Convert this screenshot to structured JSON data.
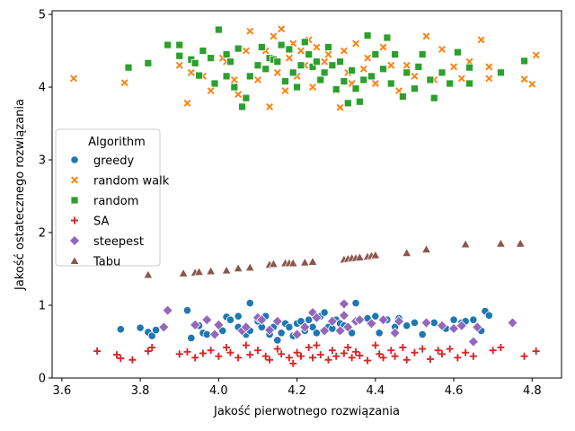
{
  "chart_data": {
    "type": "scatter",
    "title": "",
    "xlabel": "Jakość pierwotnego rozwiązania",
    "ylabel": "Jakość ostatecznego rozwiązania",
    "xlim": [
      3.575,
      4.875
    ],
    "ylim": [
      0,
      5.05
    ],
    "xticks": [
      3.6,
      3.8,
      4.0,
      4.2,
      4.4,
      4.6,
      4.8
    ],
    "yticks": [
      0,
      1,
      2,
      3,
      4,
      5
    ],
    "grid": false,
    "legend": {
      "title": "Algorithm",
      "placement": "center-left"
    },
    "series": [
      {
        "name": "greedy",
        "marker": "circle",
        "color": "#1f77b4",
        "points": [
          [
            3.75,
            0.67
          ],
          [
            3.8,
            0.69
          ],
          [
            3.82,
            0.63
          ],
          [
            3.83,
            0.58
          ],
          [
            3.84,
            0.66
          ],
          [
            3.92,
            0.93
          ],
          [
            3.93,
            0.55
          ],
          [
            3.95,
            0.72
          ],
          [
            3.96,
            0.62
          ],
          [
            3.97,
            0.6
          ],
          [
            4.0,
            0.72
          ],
          [
            4.01,
            0.65
          ],
          [
            4.02,
            0.84
          ],
          [
            4.03,
            0.8
          ],
          [
            4.05,
            0.85
          ],
          [
            4.05,
            0.7
          ],
          [
            4.07,
            0.6
          ],
          [
            4.08,
            0.65
          ],
          [
            4.08,
            1.03
          ],
          [
            4.1,
            0.78
          ],
          [
            4.11,
            0.7
          ],
          [
            4.12,
            0.85
          ],
          [
            4.13,
            0.6
          ],
          [
            4.14,
            0.7
          ],
          [
            4.15,
            0.52
          ],
          [
            4.16,
            0.62
          ],
          [
            4.17,
            0.75
          ],
          [
            4.18,
            0.7
          ],
          [
            4.19,
            0.58
          ],
          [
            4.2,
            0.75
          ],
          [
            4.21,
            0.78
          ],
          [
            4.22,
            0.65
          ],
          [
            4.23,
            0.8
          ],
          [
            4.24,
            0.7
          ],
          [
            4.25,
            0.62
          ],
          [
            4.26,
            0.85
          ],
          [
            4.27,
            0.9
          ],
          [
            4.28,
            0.7
          ],
          [
            4.29,
            0.68
          ],
          [
            4.3,
            0.8
          ],
          [
            4.31,
            0.75
          ],
          [
            4.32,
            0.72
          ],
          [
            4.33,
            0.7
          ],
          [
            4.34,
            0.62
          ],
          [
            4.35,
            1.03
          ],
          [
            4.36,
            0.8
          ],
          [
            4.38,
            0.82
          ],
          [
            4.4,
            0.85
          ],
          [
            4.41,
            0.62
          ],
          [
            4.43,
            0.8
          ],
          [
            4.45,
            0.7
          ],
          [
            4.46,
            0.82
          ],
          [
            4.48,
            0.72
          ],
          [
            4.5,
            0.76
          ],
          [
            4.52,
            0.6
          ],
          [
            4.55,
            0.76
          ],
          [
            4.58,
            0.68
          ],
          [
            4.6,
            0.8
          ],
          [
            4.62,
            0.76
          ],
          [
            4.63,
            0.78
          ],
          [
            4.65,
            0.8
          ],
          [
            4.67,
            0.65
          ],
          [
            4.68,
            0.92
          ],
          [
            4.69,
            0.86
          ]
        ]
      },
      {
        "name": "random walk",
        "marker": "x",
        "color": "#ff7f0e",
        "points": [
          [
            3.63,
            4.12
          ],
          [
            3.76,
            4.06
          ],
          [
            3.9,
            4.3
          ],
          [
            3.92,
            3.78
          ],
          [
            3.93,
            4.2
          ],
          [
            3.96,
            4.15
          ],
          [
            3.98,
            3.95
          ],
          [
            4.01,
            4.4
          ],
          [
            4.02,
            4.35
          ],
          [
            4.04,
            4.1
          ],
          [
            4.05,
            3.9
          ],
          [
            4.07,
            4.5
          ],
          [
            4.08,
            4.77
          ],
          [
            4.1,
            4.1
          ],
          [
            4.12,
            4.5
          ],
          [
            4.13,
            3.73
          ],
          [
            4.14,
            4.7
          ],
          [
            4.15,
            4.2
          ],
          [
            4.16,
            4.8
          ],
          [
            4.17,
            3.95
          ],
          [
            4.18,
            4.4
          ],
          [
            4.19,
            4.6
          ],
          [
            4.2,
            4.15
          ],
          [
            4.21,
            4.5
          ],
          [
            4.22,
            4.3
          ],
          [
            4.23,
            4.65
          ],
          [
            4.24,
            4.0
          ],
          [
            4.25,
            4.55
          ],
          [
            4.26,
            4.1
          ],
          [
            4.27,
            4.35
          ],
          [
            4.28,
            4.45
          ],
          [
            4.3,
            3.95
          ],
          [
            4.31,
            3.72
          ],
          [
            4.32,
            4.5
          ],
          [
            4.33,
            4.2
          ],
          [
            4.34,
            4.05
          ],
          [
            4.35,
            4.6
          ],
          [
            4.37,
            4.25
          ],
          [
            4.38,
            4.4
          ],
          [
            4.4,
            4.05
          ],
          [
            4.42,
            4.55
          ],
          [
            4.44,
            4.3
          ],
          [
            4.46,
            3.95
          ],
          [
            4.48,
            4.3
          ],
          [
            4.5,
            4.15
          ],
          [
            4.53,
            4.7
          ],
          [
            4.55,
            4.1
          ],
          [
            4.57,
            4.52
          ],
          [
            4.6,
            4.28
          ],
          [
            4.62,
            4.12
          ],
          [
            4.64,
            4.35
          ],
          [
            4.67,
            4.65
          ],
          [
            4.69,
            4.28
          ],
          [
            4.69,
            4.12
          ],
          [
            4.78,
            4.11
          ],
          [
            4.81,
            4.44
          ],
          [
            4.8,
            4.04
          ]
        ]
      },
      {
        "name": "random",
        "marker": "square",
        "color": "#2ca02c",
        "points": [
          [
            3.77,
            4.27
          ],
          [
            3.82,
            4.33
          ],
          [
            3.87,
            4.58
          ],
          [
            3.9,
            4.58
          ],
          [
            3.9,
            4.43
          ],
          [
            3.93,
            4.38
          ],
          [
            3.94,
            4.33
          ],
          [
            3.95,
            4.16
          ],
          [
            3.96,
            4.5
          ],
          [
            3.98,
            4.4
          ],
          [
            3.99,
            4.05
          ],
          [
            4.0,
            4.79
          ],
          [
            4.02,
            4.15
          ],
          [
            4.02,
            4.45
          ],
          [
            4.03,
            4.35
          ],
          [
            4.04,
            4.0
          ],
          [
            4.05,
            4.53
          ],
          [
            4.06,
            3.73
          ],
          [
            4.07,
            3.85
          ],
          [
            4.08,
            4.15
          ],
          [
            4.1,
            4.3
          ],
          [
            4.11,
            4.55
          ],
          [
            4.12,
            4.25
          ],
          [
            4.13,
            4.4
          ],
          [
            4.14,
            4.38
          ],
          [
            4.15,
            4.35
          ],
          [
            4.16,
            4.58
          ],
          [
            4.17,
            4.08
          ],
          [
            4.18,
            4.52
          ],
          [
            4.19,
            4.2
          ],
          [
            4.2,
            4.0
          ],
          [
            4.21,
            4.3
          ],
          [
            4.22,
            4.62
          ],
          [
            4.23,
            4.45
          ],
          [
            4.24,
            4.28
          ],
          [
            4.25,
            4.35
          ],
          [
            4.26,
            4.1
          ],
          [
            4.27,
            4.2
          ],
          [
            4.28,
            4.55
          ],
          [
            4.29,
            4.3
          ],
          [
            4.3,
            3.97
          ],
          [
            4.31,
            4.35
          ],
          [
            4.32,
            4.08
          ],
          [
            4.33,
            3.78
          ],
          [
            4.34,
            4.23
          ],
          [
            4.35,
            3.98
          ],
          [
            4.36,
            3.8
          ],
          [
            4.37,
            4.1
          ],
          [
            4.38,
            4.71
          ],
          [
            4.39,
            4.15
          ],
          [
            4.4,
            4.45
          ],
          [
            4.42,
            4.25
          ],
          [
            4.43,
            4.68
          ],
          [
            4.44,
            4.05
          ],
          [
            4.45,
            4.45
          ],
          [
            4.47,
            3.87
          ],
          [
            4.48,
            4.2
          ],
          [
            4.5,
            3.98
          ],
          [
            4.51,
            4.28
          ],
          [
            4.52,
            4.45
          ],
          [
            4.54,
            4.1
          ],
          [
            4.55,
            3.85
          ],
          [
            4.57,
            4.2
          ],
          [
            4.59,
            4.05
          ],
          [
            4.61,
            4.48
          ],
          [
            4.64,
            4.27
          ],
          [
            4.64,
            4.05
          ],
          [
            4.72,
            4.2
          ],
          [
            4.78,
            4.36
          ]
        ]
      },
      {
        "name": "SA",
        "marker": "plus",
        "color": "#d62728",
        "points": [
          [
            3.69,
            0.37
          ],
          [
            3.74,
            0.32
          ],
          [
            3.75,
            0.27
          ],
          [
            3.78,
            0.25
          ],
          [
            3.82,
            0.37
          ],
          [
            3.83,
            0.42
          ],
          [
            3.9,
            0.33
          ],
          [
            3.92,
            0.36
          ],
          [
            3.94,
            0.28
          ],
          [
            3.96,
            0.34
          ],
          [
            3.98,
            0.38
          ],
          [
            4.0,
            0.3
          ],
          [
            4.02,
            0.42
          ],
          [
            4.03,
            0.35
          ],
          [
            4.05,
            0.28
          ],
          [
            4.07,
            0.45
          ],
          [
            4.08,
            0.32
          ],
          [
            4.1,
            0.38
          ],
          [
            4.12,
            0.3
          ],
          [
            4.13,
            0.25
          ],
          [
            4.15,
            0.4
          ],
          [
            4.16,
            0.33
          ],
          [
            4.18,
            0.28
          ],
          [
            4.19,
            0.2
          ],
          [
            4.2,
            0.35
          ],
          [
            4.21,
            0.3
          ],
          [
            4.23,
            0.42
          ],
          [
            4.24,
            0.28
          ],
          [
            4.25,
            0.45
          ],
          [
            4.26,
            0.32
          ],
          [
            4.28,
            0.25
          ],
          [
            4.29,
            0.38
          ],
          [
            4.3,
            0.3
          ],
          [
            4.32,
            0.34
          ],
          [
            4.33,
            0.42
          ],
          [
            4.34,
            0.28
          ],
          [
            4.35,
            0.36
          ],
          [
            4.36,
            0.31
          ],
          [
            4.38,
            0.24
          ],
          [
            4.4,
            0.45
          ],
          [
            4.41,
            0.33
          ],
          [
            4.42,
            0.28
          ],
          [
            4.44,
            0.38
          ],
          [
            4.45,
            0.3
          ],
          [
            4.47,
            0.42
          ],
          [
            4.48,
            0.25
          ],
          [
            4.5,
            0.35
          ],
          [
            4.52,
            0.4
          ],
          [
            4.54,
            0.26
          ],
          [
            4.56,
            0.38
          ],
          [
            4.57,
            0.33
          ],
          [
            4.59,
            0.4
          ],
          [
            4.61,
            0.28
          ],
          [
            4.63,
            0.35
          ],
          [
            4.65,
            0.3
          ],
          [
            4.7,
            0.38
          ],
          [
            4.72,
            0.42
          ],
          [
            4.78,
            0.3
          ],
          [
            4.81,
            0.37
          ]
        ]
      },
      {
        "name": "steepest",
        "marker": "diamond",
        "color": "#9467bd",
        "points": [
          [
            3.86,
            0.7
          ],
          [
            3.87,
            0.93
          ],
          [
            3.94,
            0.73
          ],
          [
            3.97,
            0.8
          ],
          [
            3.99,
            0.6
          ],
          [
            4.0,
            0.73
          ],
          [
            4.06,
            0.65
          ],
          [
            4.07,
            0.7
          ],
          [
            4.1,
            0.83
          ],
          [
            4.11,
            0.8
          ],
          [
            4.13,
            0.66
          ],
          [
            4.15,
            0.78
          ],
          [
            4.2,
            0.6
          ],
          [
            4.22,
            0.7
          ],
          [
            4.24,
            0.9
          ],
          [
            4.25,
            0.83
          ],
          [
            4.27,
            0.65
          ],
          [
            4.29,
            0.78
          ],
          [
            4.31,
            0.65
          ],
          [
            4.32,
            1.02
          ],
          [
            4.32,
            0.86
          ],
          [
            4.33,
            0.7
          ],
          [
            4.35,
            0.78
          ],
          [
            4.36,
            0.8
          ],
          [
            4.39,
            0.75
          ],
          [
            4.42,
            0.8
          ],
          [
            4.45,
            0.62
          ],
          [
            4.46,
            0.78
          ],
          [
            4.53,
            0.76
          ],
          [
            4.57,
            0.72
          ],
          [
            4.6,
            0.68
          ],
          [
            4.62,
            0.72
          ],
          [
            4.65,
            0.5
          ],
          [
            4.66,
            0.7
          ],
          [
            4.75,
            0.76
          ]
        ]
      },
      {
        "name": "Tabu",
        "marker": "triangle",
        "color": "#8c564b",
        "points": [
          [
            3.82,
            1.42
          ],
          [
            3.91,
            1.44
          ],
          [
            3.94,
            1.45
          ],
          [
            3.95,
            1.46
          ],
          [
            3.98,
            1.47
          ],
          [
            4.02,
            1.48
          ],
          [
            4.05,
            1.51
          ],
          [
            4.08,
            1.52
          ],
          [
            4.13,
            1.56
          ],
          [
            4.14,
            1.57
          ],
          [
            4.17,
            1.58
          ],
          [
            4.18,
            1.58
          ],
          [
            4.19,
            1.58
          ],
          [
            4.22,
            1.59
          ],
          [
            4.24,
            1.6
          ],
          [
            4.32,
            1.63
          ],
          [
            4.33,
            1.64
          ],
          [
            4.34,
            1.65
          ],
          [
            4.35,
            1.65
          ],
          [
            4.36,
            1.66
          ],
          [
            4.38,
            1.67
          ],
          [
            4.39,
            1.68
          ],
          [
            4.4,
            1.69
          ],
          [
            4.48,
            1.72
          ],
          [
            4.53,
            1.77
          ],
          [
            4.63,
            1.84
          ],
          [
            4.72,
            1.85
          ],
          [
            4.77,
            1.85
          ]
        ]
      }
    ]
  }
}
